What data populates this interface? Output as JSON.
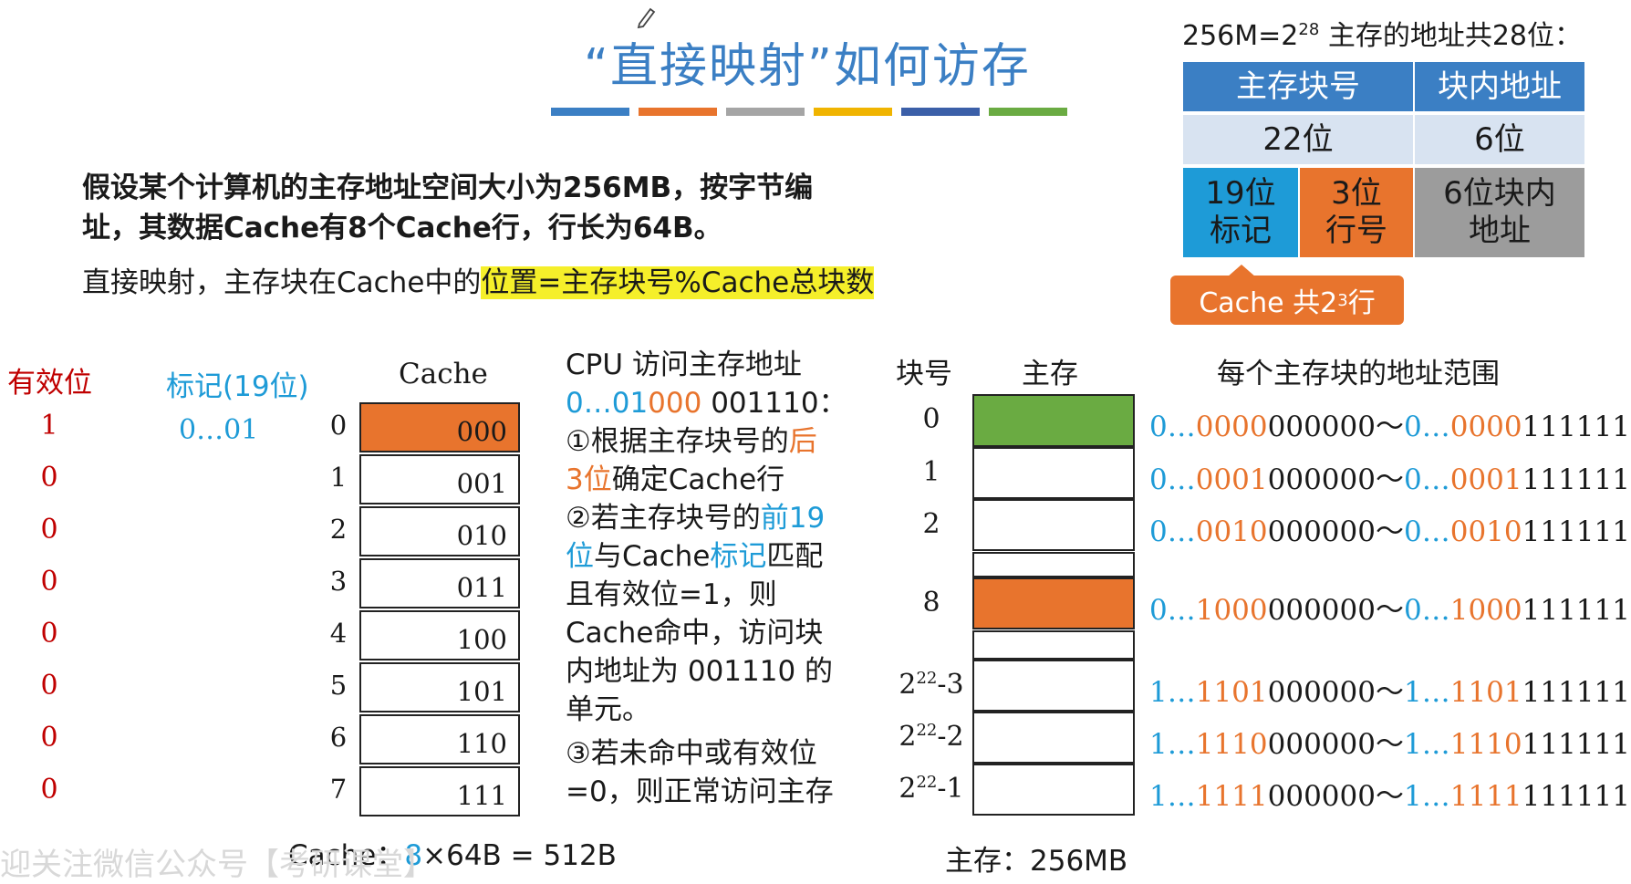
{
  "title": "“直接映射”如何访存",
  "title_bars": [
    "#3b7fc4",
    "#e8742d",
    "#a5a5a5",
    "#f0b400",
    "#3b5fa8",
    "#6aab42"
  ],
  "address": {
    "caption_prefix": "256M=2",
    "caption_exp": "28",
    "caption_suffix": " 主存的地址共28位：",
    "header_block": "主存块号",
    "header_offset": "块内地址",
    "bits_block": "22位",
    "bits_offset": "6位",
    "tag_a": "19位",
    "tag_b": "标记",
    "line_a": "3位",
    "line_b": "行号",
    "off_a": "6位块内",
    "off_b": "地址",
    "callout_prefix": "Cache 共2",
    "callout_exp": "3",
    "callout_suffix": " 行"
  },
  "problem": {
    "line1": "假设某个计算机的主存地址空间大小为256MB，按字节编",
    "line2": "址，其数据Cache有8个Cache行，行长为64B。",
    "line3_plain": "直接映射，主存块在Cache中的",
    "line3_highlight": "位置=主存块号%Cache总块数"
  },
  "cache": {
    "valid_header": "有效位",
    "tag_header": "标记(19位)",
    "cache_header": "Cache",
    "tag_value": "0…01",
    "rows": [
      {
        "idx": "0",
        "valid": "1",
        "code": "000"
      },
      {
        "idx": "1",
        "valid": "0",
        "code": "001"
      },
      {
        "idx": "2",
        "valid": "0",
        "code": "010"
      },
      {
        "idx": "3",
        "valid": "0",
        "code": "011"
      },
      {
        "idx": "4",
        "valid": "0",
        "code": "100"
      },
      {
        "idx": "5",
        "valid": "0",
        "code": "101"
      },
      {
        "idx": "6",
        "valid": "0",
        "code": "110"
      },
      {
        "idx": "7",
        "valid": "0",
        "code": "111"
      }
    ],
    "size_prefix": "Cache：",
    "size_count": "8",
    "size_suffix": "×64B = 512B"
  },
  "cpu": {
    "l1": "CPU 访问主存地址",
    "l2_a": "0…01",
    "l2_b": "000",
    "l2_c": " 001110：",
    "l3_a": "①根据主存块号的",
    "l3_b": "后",
    "l4_a": "3位",
    "l4_b": "确定Cache行",
    "l5_a": "②若主存块号的",
    "l5_b": "前19",
    "l6_a": "位",
    "l6_b": "与Cache",
    "l6_c": "标记",
    "l6_d": "匹配",
    "l7": "且有效位=1，则",
    "l8": "Cache命中，访问块",
    "l9": "内地址为 001110 的",
    "l10": "单元。",
    "l11": "③若未命中或有效位",
    "l12": "=0，则正常访问主存"
  },
  "memory": {
    "blockno_header": "块号",
    "mem_header": "主存",
    "range_header": "每个主存块的地址范围",
    "rows": [
      {
        "no": "0",
        "pre": "0…",
        "mid": "000",
        "start": "0000000000",
        "a": "0…0000",
        "b": "000000",
        "tilde": "～",
        "c": "0…0000",
        "d": "111111",
        "fill": "#6aab42"
      },
      {
        "no": "1",
        "a": "0…0001",
        "b": "000000",
        "tilde": "～",
        "c": "0…0001",
        "d": "111111",
        "fill": "#ffffff"
      },
      {
        "no": "2",
        "a": "0…0010",
        "b": "000000",
        "tilde": "～",
        "c": "0…0010",
        "d": "111111",
        "fill": "#ffffff"
      },
      {
        "no": "8",
        "a": "0…1000",
        "b": "000000",
        "tilde": "～",
        "c": "0…1000",
        "d": "111111",
        "fill": "#e8742d"
      },
      {
        "no_base": "2",
        "no_exp": "22",
        "no_tail": "-3",
        "a": "1…1101",
        "b": "000000",
        "tilde": "～",
        "c": "1…1101",
        "d": "111111",
        "fill": "#ffffff"
      },
      {
        "no_base": "2",
        "no_exp": "22",
        "no_tail": "-2",
        "a": "1…1110",
        "b": "000000",
        "tilde": "～",
        "c": "1…1110",
        "d": "111111",
        "fill": "#ffffff"
      },
      {
        "no_base": "2",
        "no_exp": "22",
        "no_tail": "-1",
        "a": "1…1111",
        "b": "000000",
        "tilde": "～",
        "c": "1…1111",
        "d": "111111",
        "fill": "#ffffff"
      }
    ],
    "size_label": "主存：256MB"
  },
  "watermark": "迎关注微信公众号【考研课堂】"
}
